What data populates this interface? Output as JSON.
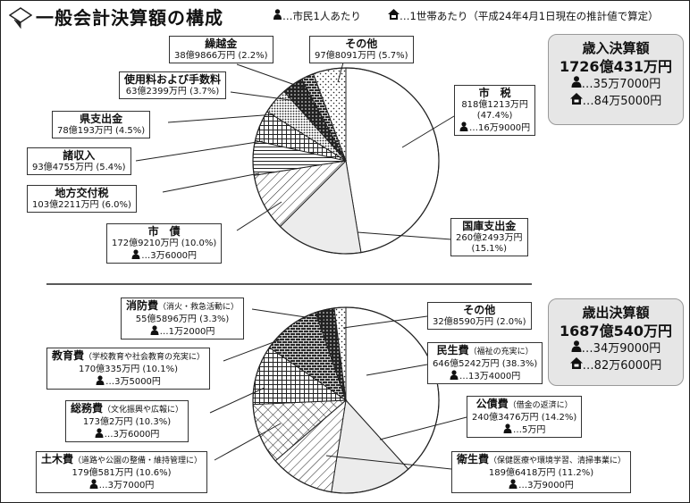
{
  "title": "一般会計決算額の構成",
  "notes": {
    "per_person": "…市民1人あたり",
    "per_household": "…1世帯あたり（平成24年4月1日現在の推計値で算定）"
  },
  "revenue_summary": {
    "title": "歳入決算額",
    "total": "1726億431万円",
    "per_person": "…35万7000円",
    "per_household": "…84万5000円"
  },
  "expenditure_summary": {
    "title": "歳出決算額",
    "total": "1687億540万円",
    "per_person": "…34万9000円",
    "per_household": "…82万6000円"
  },
  "revenue_labels": {
    "kurikoshi": {
      "name": "繰越金",
      "amount": "38億9866万円 (2.2%)"
    },
    "sonota": {
      "name": "その他",
      "amount": "97億8091万円 (5.7%)"
    },
    "shiyoryo": {
      "name": "使用料および手数料",
      "amount": "63億2399万円 (3.7%)"
    },
    "shizei": {
      "name": "市　税",
      "amount": "818億1213万円",
      "pct": "(47.4%)",
      "per_person": "…16万9000円"
    },
    "kenshishutsu": {
      "name": "県支出金",
      "amount": "78億193万円 (4.5%)"
    },
    "shoshunyu": {
      "name": "諸収入",
      "amount": "93億4755万円 (5.4%)"
    },
    "chihokofu": {
      "name": "地方交付税",
      "amount": "103億2211万円 (6.0%)"
    },
    "shisai": {
      "name": "市　債",
      "amount": "172億9210万円 (10.0%)",
      "per_person": "…3万6000円"
    },
    "kokko": {
      "name": "国庫支出金",
      "amount": "260億2493万円",
      "pct": "(15.1%)"
    }
  },
  "expenditure_labels": {
    "shobo": {
      "name": "消防費",
      "sub": "（消火・救急活動に）",
      "amount": "55億5896万円 (3.3%)",
      "per_person": "…1万2000円"
    },
    "sonota": {
      "name": "その他",
      "amount": "32億8590万円 (2.0%)"
    },
    "kyoiku": {
      "name": "教育費",
      "sub": "（学校教育や社会教育の充実に）",
      "amount": "170億335万円 (10.1%)",
      "per_person": "…3万5000円"
    },
    "minsei": {
      "name": "民生費",
      "sub": "（福祉の充実に）",
      "amount": "646億5242万円 (38.3%)",
      "per_person": "…13万4000円"
    },
    "somu": {
      "name": "総務費",
      "sub": "（文化振興や広報に）",
      "amount": "173億2万円 (10.3%)",
      "per_person": "…3万6000円"
    },
    "kosai": {
      "name": "公債費",
      "sub": "（借金の返済に）",
      "amount": "240億3476万円 (14.2%)",
      "per_person": "…5万円"
    },
    "doboku": {
      "name": "土木費",
      "sub": "（道路や公園の整備・維持管理に）",
      "amount": "179億581万円 (10.6%)",
      "per_person": "…3万7000円"
    },
    "eisei": {
      "name": "衛生費",
      "sub": "（保健医療や環境学習、清掃事業に）",
      "amount": "189億6418万円 (11.2%)",
      "per_person": "…3万9000円"
    }
  },
  "chart_data": [
    {
      "type": "pie",
      "title": "歳入決算額",
      "categories": [
        "市税",
        "国庫支出金",
        "市債",
        "地方交付税",
        "諸収入",
        "県支出金",
        "使用料および手数料",
        "繰越金",
        "その他"
      ],
      "values": [
        47.4,
        15.1,
        10.0,
        6.0,
        5.4,
        4.5,
        3.7,
        2.2,
        5.7
      ],
      "amounts": [
        "818億1213万円",
        "260億2493万円",
        "172億9210万円",
        "103億2211万円",
        "93億4755万円",
        "78億193万円",
        "63億2399万円",
        "38億9866万円",
        "97億8091万円"
      ],
      "patterns": [
        "white",
        "light-gray",
        "diag-thin",
        "hlines",
        "hatch-grid",
        "dots-dense",
        "dots-black",
        "bricks",
        "dots-sparse"
      ]
    },
    {
      "type": "pie",
      "title": "歳出決算額",
      "categories": [
        "民生費",
        "公債費",
        "衛生費",
        "土木費",
        "総務費",
        "教育費",
        "消防費",
        "その他"
      ],
      "values": [
        38.3,
        14.2,
        11.2,
        10.6,
        10.3,
        10.1,
        3.3,
        2.0
      ],
      "amounts": [
        "646億5242万円",
        "240億3476万円",
        "189億6418万円",
        "179億581万円",
        "173億2万円",
        "170億335万円",
        "55億5896万円",
        "32億8590万円"
      ],
      "patterns": [
        "white",
        "light-gray",
        "diag-thin",
        "diag-cross",
        "hatch-grid",
        "bricks",
        "dots-black",
        "dots-sparse"
      ]
    }
  ]
}
